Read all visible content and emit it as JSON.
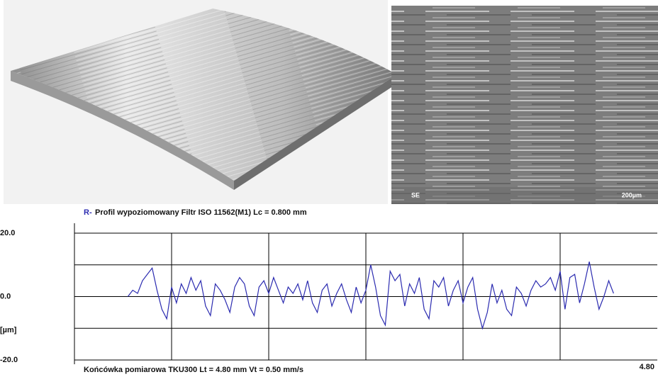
{
  "images": {
    "sem_mode": "SE",
    "sem_scale": "200µm"
  },
  "chart_data": {
    "type": "line",
    "title_prefix": "R-",
    "title": "Profil  wypoziomowany  Filtr  ISO 11562(M1)  Lc = 0.800  mm",
    "footer": "Końcówka pomiarowa TKU300    Lt = 4.80  mm    Vt = 0.50  mm/s",
    "ylabel": "[µm]",
    "xlim": [
      0,
      4.8
    ],
    "ylim": [
      -20,
      20
    ],
    "xticks": [
      {
        "value": 4.8,
        "label": "4.80"
      }
    ],
    "yticks": [
      {
        "value": 20,
        "label": "20.0"
      },
      {
        "value": 0,
        "label": "0.0"
      },
      {
        "value": -20,
        "label": "-20.0"
      }
    ],
    "xgrid": [
      0.8,
      1.6,
      2.4,
      3.2,
      4.0
    ],
    "ygrid": [
      -20,
      -10,
      0,
      10,
      20
    ],
    "x": [
      0.44,
      0.48,
      0.52,
      0.56,
      0.6,
      0.64,
      0.68,
      0.72,
      0.76,
      0.8,
      0.84,
      0.88,
      0.92,
      0.96,
      1.0,
      1.04,
      1.08,
      1.12,
      1.16,
      1.2,
      1.24,
      1.28,
      1.32,
      1.36,
      1.4,
      1.44,
      1.48,
      1.52,
      1.56,
      1.6,
      1.64,
      1.68,
      1.72,
      1.76,
      1.8,
      1.84,
      1.88,
      1.92,
      1.96,
      2.0,
      2.04,
      2.08,
      2.12,
      2.16,
      2.2,
      2.24,
      2.28,
      2.32,
      2.36,
      2.4,
      2.44,
      2.48,
      2.52,
      2.56,
      2.6,
      2.64,
      2.68,
      2.72,
      2.76,
      2.8,
      2.84,
      2.88,
      2.92,
      2.96,
      3.0,
      3.04,
      3.08,
      3.12,
      3.16,
      3.2,
      3.24,
      3.28,
      3.32,
      3.36,
      3.4,
      3.44,
      3.48,
      3.52,
      3.56,
      3.6,
      3.64,
      3.68,
      3.72,
      3.76,
      3.8,
      3.84,
      3.88,
      3.92,
      3.96,
      4.0,
      4.04,
      4.08,
      4.12,
      4.16,
      4.2,
      4.24,
      4.28,
      4.32,
      4.36,
      4.4,
      4.44
    ],
    "series": [
      {
        "color": "#2b2bb0",
        "values": [
          0,
          2,
          1,
          5,
          7,
          9,
          2,
          -4,
          -7,
          3,
          -2,
          4,
          1,
          6,
          2,
          5,
          -3,
          -6,
          4,
          2,
          -1,
          -5,
          3,
          6,
          4,
          -3,
          -6,
          3,
          5,
          1,
          6,
          2,
          -2,
          3,
          1,
          4,
          -1,
          5,
          -2,
          -5,
          2,
          4,
          -3,
          1,
          4,
          -1,
          -5,
          3,
          -2,
          2,
          10,
          3,
          -6,
          -9,
          8,
          5,
          7,
          -3,
          4,
          1,
          6,
          -4,
          -7,
          5,
          3,
          6,
          -3,
          2,
          5,
          -2,
          3,
          6,
          -4,
          -10,
          -5,
          4,
          -2,
          2,
          -4,
          -6,
          3,
          1,
          -3,
          2,
          5,
          3,
          4,
          6,
          2,
          8,
          -4,
          6,
          7,
          -2,
          4,
          11,
          3,
          -4,
          0,
          5,
          1
        ]
      }
    ]
  }
}
